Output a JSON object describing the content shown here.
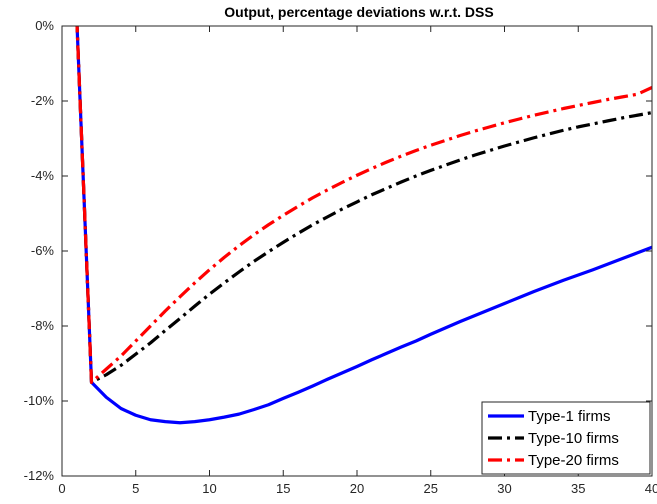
{
  "chart_data": {
    "type": "line",
    "title": "Output, percentage deviations w.r.t. DSS",
    "xlabel": "",
    "ylabel": "",
    "xlim": [
      0,
      40
    ],
    "ylim": [
      -12,
      0
    ],
    "x_ticks": [
      0,
      5,
      10,
      15,
      20,
      25,
      30,
      35,
      40
    ],
    "x_tick_labels": [
      "0",
      "5",
      "10",
      "15",
      "20",
      "25",
      "30",
      "35",
      "40"
    ],
    "y_ticks": [
      0,
      -2,
      -4,
      -6,
      -8,
      -10,
      -12
    ],
    "y_tick_labels": [
      "0%",
      "-2%",
      "-4%",
      "-6%",
      "-8%",
      "-10%",
      "-12%"
    ],
    "grid": false,
    "legend_position": "bottom-right",
    "x": [
      1,
      2,
      3,
      4,
      5,
      6,
      7,
      8,
      9,
      10,
      11,
      12,
      13,
      14,
      15,
      16,
      17,
      18,
      19,
      20,
      21,
      22,
      23,
      24,
      25,
      26,
      27,
      28,
      29,
      30,
      31,
      32,
      33,
      34,
      35,
      36,
      37,
      38,
      39,
      40
    ],
    "series": [
      {
        "name": "Type-1 firms",
        "color": "#0000ff",
        "style": "solid",
        "values": [
          0.2,
          -9.5,
          -9.9,
          -10.2,
          -10.38,
          -10.5,
          -10.55,
          -10.58,
          -10.55,
          -10.5,
          -10.43,
          -10.35,
          -10.23,
          -10.1,
          -9.93,
          -9.77,
          -9.6,
          -9.42,
          -9.25,
          -9.08,
          -8.9,
          -8.73,
          -8.56,
          -8.4,
          -8.22,
          -8.05,
          -7.88,
          -7.72,
          -7.56,
          -7.4,
          -7.24,
          -7.08,
          -6.93,
          -6.78,
          -6.64,
          -6.5,
          -6.35,
          -6.2,
          -6.05,
          -5.9
        ]
      },
      {
        "name": "Type-10 firms",
        "color": "#000000",
        "style": "dashdot",
        "values": [
          0.2,
          -9.5,
          -9.3,
          -9.05,
          -8.75,
          -8.45,
          -8.12,
          -7.8,
          -7.47,
          -7.15,
          -6.85,
          -6.56,
          -6.28,
          -6.02,
          -5.77,
          -5.53,
          -5.3,
          -5.09,
          -4.88,
          -4.69,
          -4.5,
          -4.33,
          -4.16,
          -4.0,
          -3.85,
          -3.71,
          -3.57,
          -3.44,
          -3.32,
          -3.2,
          -3.09,
          -2.98,
          -2.88,
          -2.78,
          -2.69,
          -2.61,
          -2.53,
          -2.45,
          -2.38,
          -2.31
        ]
      },
      {
        "name": "Type-20 firms",
        "color": "#ff0000",
        "style": "dashdot",
        "values": [
          0.2,
          -9.5,
          -9.15,
          -8.8,
          -8.4,
          -8.0,
          -7.6,
          -7.22,
          -6.85,
          -6.5,
          -6.17,
          -5.86,
          -5.57,
          -5.3,
          -5.05,
          -4.81,
          -4.58,
          -4.37,
          -4.17,
          -3.98,
          -3.8,
          -3.63,
          -3.47,
          -3.32,
          -3.18,
          -3.05,
          -2.92,
          -2.8,
          -2.69,
          -2.58,
          -2.48,
          -2.38,
          -2.29,
          -2.2,
          -2.12,
          -2.04,
          -1.96,
          -1.89,
          -1.82,
          -1.64
        ]
      }
    ]
  }
}
